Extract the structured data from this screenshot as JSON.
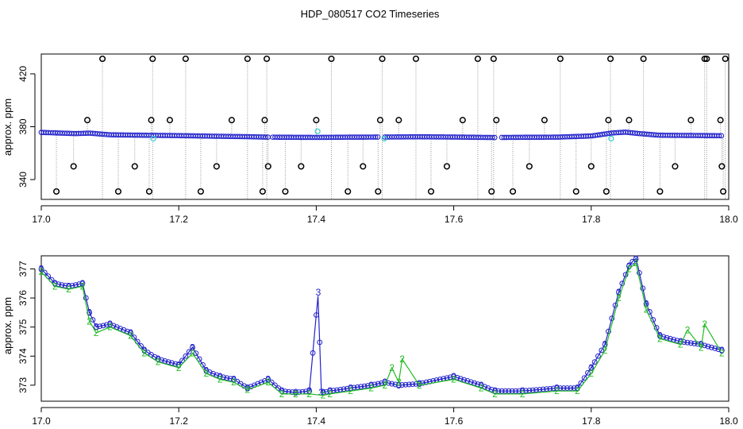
{
  "title": "HDP_080517  CO2 Timeseries",
  "colors": {
    "cycle1": "#000000",
    "cycle2": "#22bb22",
    "cycle3": "#2222cc",
    "cycle3_flag": "#33cccc",
    "drop": "#9a9a9a"
  },
  "chart_data": [
    {
      "type": "scatter",
      "name": "top-panel",
      "ylabel": "approx. ppm",
      "xlim": [
        17.0,
        18.0
      ],
      "ylim": [
        325,
        435
      ],
      "xticks": [
        "17.0",
        "17.2",
        "17.4",
        "17.6",
        "17.8",
        "18.0"
      ],
      "xtick_values": [
        17.0,
        17.2,
        17.4,
        17.6,
        17.8,
        18.0
      ],
      "yticks": [
        "340",
        "380",
        "420"
      ],
      "ytick_values": [
        340,
        380,
        420
      ],
      "baseline_series": {
        "marker": "circle",
        "color": "cycle3",
        "x": [
          17.0,
          17.05,
          17.07,
          17.1,
          17.15,
          17.2,
          17.25,
          17.3,
          17.33,
          17.4,
          17.45,
          17.5,
          17.55,
          17.6,
          17.66,
          17.7,
          17.75,
          17.8,
          17.83,
          17.85,
          17.87,
          17.9,
          17.95,
          17.99
        ],
        "y": [
          377,
          376,
          376.4,
          375,
          374.6,
          374.3,
          373.8,
          373.4,
          373,
          372.8,
          373,
          373.1,
          373.3,
          373.1,
          372.7,
          372.9,
          373,
          374,
          376.5,
          377.2,
          376,
          374.6,
          374.4,
          374.2
        ]
      },
      "flagged_points": {
        "marker": "circle",
        "color": "cycle3_flag",
        "x": [
          17.163,
          17.402,
          17.499,
          17.829
        ],
        "y": [
          371,
          376.5,
          371,
          371
        ]
      },
      "spikes": {
        "marker": "open-circle",
        "color": "cycle1",
        "x": [
          17.022,
          17.047,
          17.067,
          17.089,
          17.112,
          17.136,
          17.157,
          17.16,
          17.162,
          17.187,
          17.21,
          17.232,
          17.255,
          17.277,
          17.3,
          17.322,
          17.325,
          17.328,
          17.33,
          17.355,
          17.378,
          17.4,
          17.422,
          17.446,
          17.468,
          17.49,
          17.493,
          17.496,
          17.52,
          17.545,
          17.567,
          17.59,
          17.613,
          17.635,
          17.655,
          17.658,
          17.662,
          17.686,
          17.71,
          17.732,
          17.755,
          17.778,
          17.8,
          17.822,
          17.825,
          17.828,
          17.855,
          17.876,
          17.9,
          17.922,
          17.945,
          17.965,
          17.968,
          17.988,
          17.99,
          17.992,
          17.995
        ],
        "y": [
          330,
          350,
          385,
          438,
          330,
          350,
          330,
          385,
          438,
          385,
          438,
          330,
          350,
          385,
          438,
          330,
          385,
          438,
          350,
          330,
          350,
          385,
          438,
          330,
          350,
          330,
          385,
          438,
          385,
          438,
          330,
          350,
          385,
          438,
          330,
          438,
          385,
          330,
          350,
          385,
          438,
          330,
          350,
          330,
          385,
          438,
          385,
          438,
          330,
          350,
          385,
          438,
          438,
          385,
          350,
          330,
          438
        ]
      }
    },
    {
      "type": "line",
      "name": "bottom-panel",
      "ylabel": "approx. ppm",
      "xlim": [
        17.0,
        18.0
      ],
      "ylim": [
        372.45,
        377.45
      ],
      "xticks": [
        "17.0",
        "17.2",
        "17.4",
        "17.6",
        "17.8",
        "18.0"
      ],
      "xtick_values": [
        17.0,
        17.2,
        17.4,
        17.6,
        17.8,
        18.0
      ],
      "yticks": [
        "373",
        "374",
        "375",
        "376",
        "377"
      ],
      "ytick_values": [
        373,
        374,
        375,
        376,
        377
      ],
      "series": [
        {
          "marker": "3",
          "color": "cycle3",
          "x": [
            17.0,
            17.02,
            17.04,
            17.06,
            17.07,
            17.08,
            17.1,
            17.13,
            17.15,
            17.17,
            17.2,
            17.22,
            17.24,
            17.26,
            17.28,
            17.3,
            17.33,
            17.35,
            17.37,
            17.39,
            17.403,
            17.407,
            17.41,
            17.42,
            17.45,
            17.48,
            17.5,
            17.52,
            17.55,
            17.6,
            17.64,
            17.66,
            17.7,
            17.75,
            17.78,
            17.8,
            17.82,
            17.84,
            17.855,
            17.865,
            17.88,
            17.9,
            17.93,
            17.96,
            17.99
          ],
          "y": [
            377,
            376.5,
            376.4,
            376.5,
            375.5,
            375,
            375.1,
            374.8,
            374.2,
            373.9,
            373.7,
            374.3,
            373.5,
            373.3,
            373.2,
            372.9,
            373.2,
            372.8,
            372.75,
            372.8,
            376.2,
            372.75,
            372.75,
            372.8,
            372.9,
            373.0,
            373.1,
            373.0,
            373.05,
            373.3,
            373.0,
            372.8,
            372.8,
            372.9,
            372.9,
            373.6,
            374.4,
            376.2,
            377.1,
            377.4,
            375.8,
            374.7,
            374.5,
            374.4,
            374.2
          ]
        },
        {
          "marker": "2",
          "color": "cycle2",
          "x": [
            17.0,
            17.02,
            17.04,
            17.06,
            17.07,
            17.08,
            17.1,
            17.13,
            17.15,
            17.17,
            17.2,
            17.22,
            17.24,
            17.26,
            17.28,
            17.3,
            17.33,
            17.35,
            17.37,
            17.39,
            17.41,
            17.42,
            17.45,
            17.48,
            17.5,
            17.51,
            17.52,
            17.525,
            17.55,
            17.6,
            17.64,
            17.66,
            17.7,
            17.75,
            17.78,
            17.8,
            17.82,
            17.84,
            17.855,
            17.865,
            17.88,
            17.9,
            17.93,
            17.94,
            17.96,
            17.965,
            17.99
          ],
          "y": [
            376.9,
            376.4,
            376.3,
            376.4,
            375.2,
            374.8,
            375.0,
            374.7,
            374.1,
            373.8,
            373.6,
            374.1,
            373.4,
            373.2,
            373.1,
            372.85,
            373.1,
            372.7,
            372.7,
            372.7,
            372.65,
            372.7,
            372.8,
            372.9,
            373.0,
            373.6,
            373.1,
            373.9,
            373.0,
            373.2,
            372.9,
            372.7,
            372.7,
            372.8,
            372.8,
            373.4,
            374.2,
            376.0,
            377.0,
            377.2,
            375.6,
            374.6,
            374.4,
            374.9,
            374.3,
            375.1,
            374.1
          ]
        }
      ]
    }
  ]
}
